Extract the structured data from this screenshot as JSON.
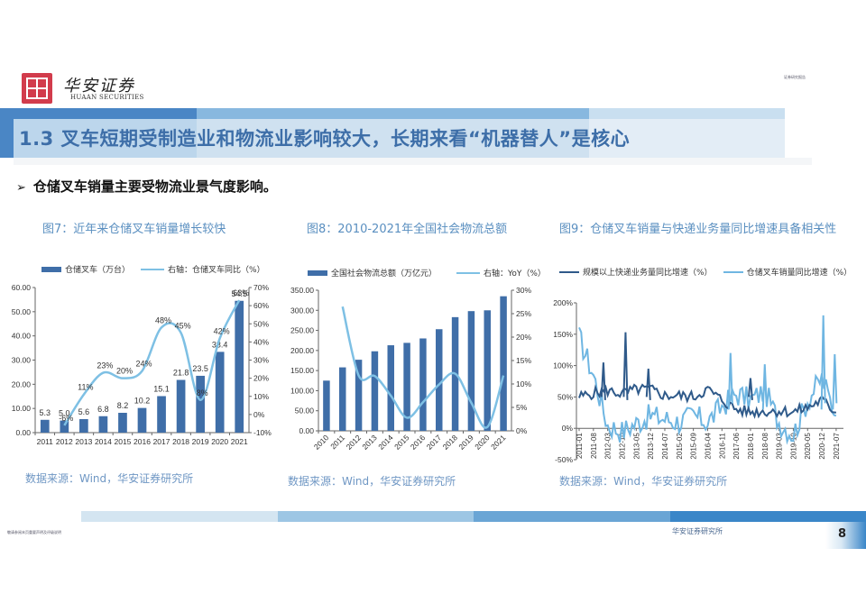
{
  "header": {
    "logo_cn": "华安证券",
    "logo_en": "HUAAN SECURITIES",
    "top_right_note": "证券研究报告"
  },
  "page_title": "1.3 叉车短期受制造业和物流业影响较大，长期来看“机器替人”是核心",
  "bullet": {
    "icon": "arrow-right-icon",
    "arrow": "➢",
    "text": "仓储叉车销量主要受物流业景气度影响。"
  },
  "figures": [
    {
      "title": "图7：近年来仓储叉车销量增长较快",
      "legend": [
        "仓储叉车（万台）",
        "右轴：仓储叉车同比（%）"
      ],
      "source": "数据来源：Wind，华安证券研究所"
    },
    {
      "title": "图8：2010-2021年全国社会物流总额",
      "legend": [
        "全国社会物流总额（万亿元）",
        "右轴：YoY（%）"
      ],
      "source": "数据来源：Wind，华安证券研究所"
    },
    {
      "title": "图9：仓储叉车销量与快递业务量同比增速具备相关性",
      "legend": [
        "规模以上快递业务量同比增速（%）",
        "仓储叉车销量同比增速（%）"
      ],
      "source": "数据来源：Wind，华安证券研究所"
    }
  ],
  "footer": {
    "left_note": "敬请参阅末页重要声明及评级说明",
    "center": "华安证券研究所",
    "page_number": "8"
  },
  "colors": {
    "bar": "#3f6ea8",
    "line_light": "#7ec0e4",
    "line_dark": "#2f5a8a",
    "title_blue": "#3d6ea8",
    "accent_band": "#4a86c5"
  },
  "chart_data": [
    {
      "type": "bar",
      "title": "图7：近年来仓储叉车销量增长较快",
      "categories": [
        "2011",
        "2012",
        "2013",
        "2014",
        "2015",
        "2016",
        "2017",
        "2018",
        "2019",
        "2020",
        "2021"
      ],
      "series": [
        {
          "name": "仓储叉车（万台）",
          "type": "bar",
          "axis": "left",
          "values": [
            5.3,
            5.0,
            5.6,
            6.8,
            8.2,
            10.2,
            15.1,
            21.8,
            23.5,
            33.4,
            54.5
          ],
          "labels": [
            "5.3",
            "5.0",
            "5.6",
            "6.8",
            "8.2",
            "10.2",
            "15.1",
            "21.8",
            "23.5",
            "33.4",
            "54.5"
          ]
        },
        {
          "name": "右轴：仓储叉车同比（%）",
          "type": "line",
          "axis": "right",
          "values": [
            null,
            -6,
            11,
            23,
            20,
            24,
            48,
            45,
            8,
            42,
            63
          ],
          "labels": [
            "",
            "-6%",
            "11%",
            "23%",
            "20%",
            "24%",
            "48%",
            "45%",
            "8%",
            "42%",
            "63%"
          ]
        }
      ],
      "ylim": [
        0,
        60
      ],
      "yticks": [
        "0.00",
        "10.00",
        "20.00",
        "30.00",
        "40.00",
        "50.00",
        "60.00"
      ],
      "y2lim": [
        -10,
        70
      ],
      "y2ticks": [
        "-10%",
        "0%",
        "10%",
        "20%",
        "30%",
        "40%",
        "50%",
        "60%",
        "70%"
      ],
      "legend_position": "top",
      "grid": false
    },
    {
      "type": "bar",
      "title": "图8：2010-2021年全国社会物流总额",
      "categories": [
        "2010",
        "2011",
        "2012",
        "2013",
        "2014",
        "2015",
        "2016",
        "2017",
        "2018",
        "2019",
        "2020",
        "2021"
      ],
      "series": [
        {
          "name": "全国社会物流总额（万亿元）",
          "type": "bar",
          "axis": "left",
          "values": [
            125,
            158,
            177,
            198,
            213,
            219,
            230,
            253,
            283,
            298,
            300,
            335
          ]
        },
        {
          "name": "右轴：YoY（%）",
          "type": "line",
          "axis": "right",
          "values": [
            null,
            26.5,
            11.8,
            11.7,
            7.5,
            2.8,
            6.1,
            9.9,
            12.2,
            6.0,
            0.8,
            11.8
          ]
        }
      ],
      "ylim": [
        0,
        350
      ],
      "yticks": [
        "0.00",
        "50.00",
        "100.00",
        "150.00",
        "200.00",
        "250.00",
        "300.00",
        "350.00"
      ],
      "y2lim": [
        0,
        30
      ],
      "y2ticks": [
        "0%",
        "5%",
        "10%",
        "15%",
        "20%",
        "25%",
        "30%"
      ],
      "legend_position": "top",
      "grid": false
    },
    {
      "type": "line",
      "title": "图9：仓储叉车销量与快递业务量同比增速具备相关性",
      "x": [
        "2011-01",
        "2011-08",
        "2012-03",
        "2012-10",
        "2013-05",
        "2013-12",
        "2014-07",
        "2015-02",
        "2015-09",
        "2016-04",
        "2016-11",
        "2017-06",
        "2018-01",
        "2018-08",
        "2019-03",
        "2019-10",
        "2020-05",
        "2020-12",
        "2021-07"
      ],
      "series": [
        {
          "name": "规模以上快递业务量同比增速（%）",
          "values": [
            50,
            56,
            60,
            55,
            62,
            62,
            52,
            52,
            50,
            62,
            45,
            30,
            26,
            27,
            28,
            26,
            33,
            45,
            25
          ]
        },
        {
          "name": "仓储叉车销量同比增速（%）",
          "values": [
            145,
            85,
            5,
            -5,
            8,
            20,
            15,
            10,
            20,
            10,
            35,
            55,
            45,
            60,
            10,
            -10,
            45,
            80,
            20
          ]
        }
      ],
      "ylim": [
        -50,
        200
      ],
      "yticks": [
        "-50%",
        "0%",
        "50%",
        "100%",
        "150%",
        "200%"
      ],
      "legend_position": "top",
      "grid": false
    }
  ]
}
